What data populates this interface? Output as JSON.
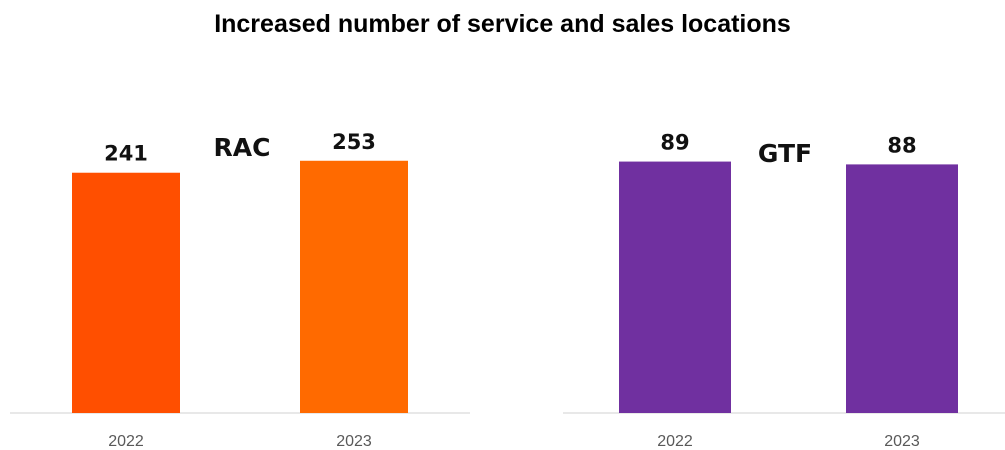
{
  "title": "Increased number of service and sales locations",
  "chart_data": [
    {
      "type": "bar",
      "title": "RAC",
      "categories": [
        "2022",
        "2023"
      ],
      "values": [
        241,
        253
      ],
      "bar_colors": [
        "#FF4F00",
        "#FF6A00"
      ],
      "ylim": [
        0,
        330
      ],
      "grid": false,
      "legend": "none"
    },
    {
      "type": "bar",
      "title": "GTF",
      "categories": [
        "2022",
        "2023"
      ],
      "values": [
        89,
        88
      ],
      "bar_colors": [
        "#7030A0",
        "#7030A0"
      ],
      "ylim": [
        0,
        120
      ],
      "grid": false,
      "legend": "none"
    }
  ]
}
